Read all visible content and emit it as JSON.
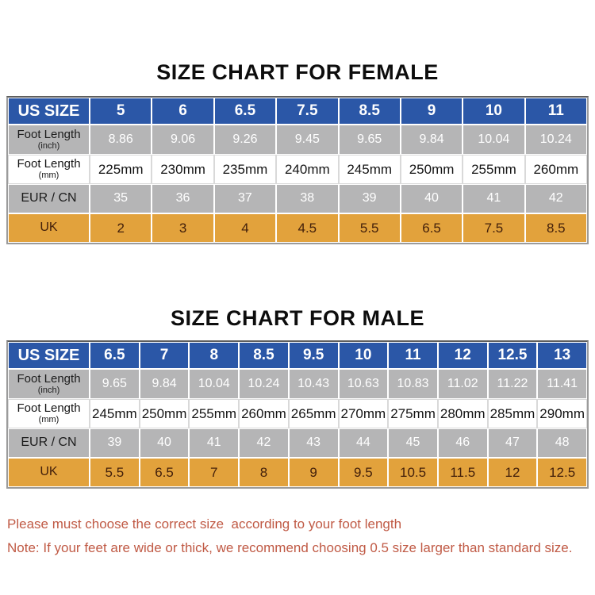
{
  "female": {
    "title": "SIZE CHART FOR FEMALE",
    "header_label": "US SIZE",
    "us_sizes": [
      "5",
      "6",
      "6.5",
      "7.5",
      "8.5",
      "9",
      "10",
      "11"
    ],
    "rows": [
      {
        "label": "Foot Length",
        "sublabel": "(inch)",
        "style": "gray",
        "values": [
          "8.86",
          "9.06",
          "9.26",
          "9.45",
          "9.65",
          "9.84",
          "10.04",
          "10.24"
        ]
      },
      {
        "label": "Foot Length",
        "sublabel": "(mm)",
        "style": "white",
        "values": [
          "225mm",
          "230mm",
          "235mm",
          "240mm",
          "245mm",
          "250mm",
          "255mm",
          "260mm"
        ]
      },
      {
        "label": "EUR / CN",
        "sublabel": "",
        "style": "gray",
        "values": [
          "35",
          "36",
          "37",
          "38",
          "39",
          "40",
          "41",
          "42"
        ]
      },
      {
        "label": "UK",
        "sublabel": "",
        "style": "orange",
        "values": [
          "2",
          "3",
          "4",
          "4.5",
          "5.5",
          "6.5",
          "7.5",
          "8.5"
        ]
      }
    ]
  },
  "male": {
    "title": "SIZE CHART FOR MALE",
    "header_label": "US SIZE",
    "us_sizes": [
      "6.5",
      "7",
      "8",
      "8.5",
      "9.5",
      "10",
      "11",
      "12",
      "12.5",
      "13"
    ],
    "rows": [
      {
        "label": "Foot Length",
        "sublabel": "(inch)",
        "style": "gray",
        "values": [
          "9.65",
          "9.84",
          "10.04",
          "10.24",
          "10.43",
          "10.63",
          "10.83",
          "11.02",
          "11.22",
          "11.41"
        ]
      },
      {
        "label": "Foot Length",
        "sublabel": "(mm)",
        "style": "white",
        "values": [
          "245mm",
          "250mm",
          "255mm",
          "260mm",
          "265mm",
          "270mm",
          "275mm",
          "280mm",
          "285mm",
          "290mm"
        ]
      },
      {
        "label": "EUR / CN",
        "sublabel": "",
        "style": "gray",
        "values": [
          "39",
          "40",
          "41",
          "42",
          "43",
          "44",
          "45",
          "46",
          "47",
          "48"
        ]
      },
      {
        "label": "UK",
        "sublabel": "",
        "style": "orange",
        "values": [
          "5.5",
          "6.5",
          "7",
          "8",
          "9",
          "9.5",
          "10.5",
          "11.5",
          "12",
          "12.5"
        ]
      }
    ]
  },
  "notes": [
    "Please must choose the correct size  according to your foot length",
    "Note: If your feet are wide or thick, we recommend choosing 0.5 size larger than standard size."
  ],
  "colors": {
    "header_blue": "#2B57A7",
    "row_gray": "#B5B5B6",
    "row_orange": "#E2A23C",
    "uk_text_dark": "#43200B",
    "note_red": "#C05A45"
  }
}
